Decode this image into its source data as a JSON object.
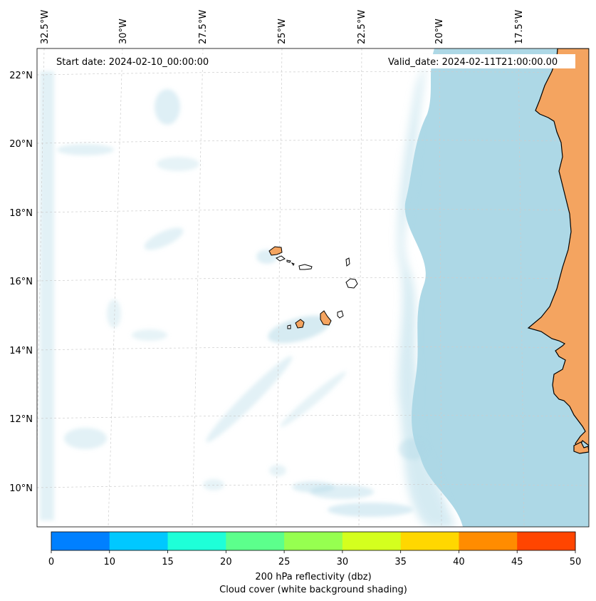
{
  "map": {
    "start_date": "Start date: 2024-02-10_00:00:00",
    "valid_date": "Valid_date: 2024-02-11T21:00:00.00",
    "lon_labels": [
      "32.5°W",
      "30°W",
      "27.5°W",
      "25°W",
      "22.5°W",
      "20°W",
      "17.5°W"
    ],
    "lat_labels": [
      "22°N",
      "20°N",
      "18°N",
      "16°N",
      "14°N",
      "12°N",
      "10°N"
    ],
    "land_color": "#f4a460",
    "ocean_shading_color": "#add8e6"
  },
  "colorbar": {
    "ticks": [
      "0",
      "10",
      "15",
      "20",
      "25",
      "30",
      "35",
      "40",
      "45",
      "50"
    ],
    "colors": [
      "#0080ff",
      "#00c8ff",
      "#1effd8",
      "#5cff8c",
      "#96ff50",
      "#d4ff1e",
      "#ffd700",
      "#ff8c00",
      "#ff4500"
    ],
    "label_line1": "200 hPa reflectivity (dbz)",
    "label_line2": "Cloud cover (white background shading)"
  }
}
